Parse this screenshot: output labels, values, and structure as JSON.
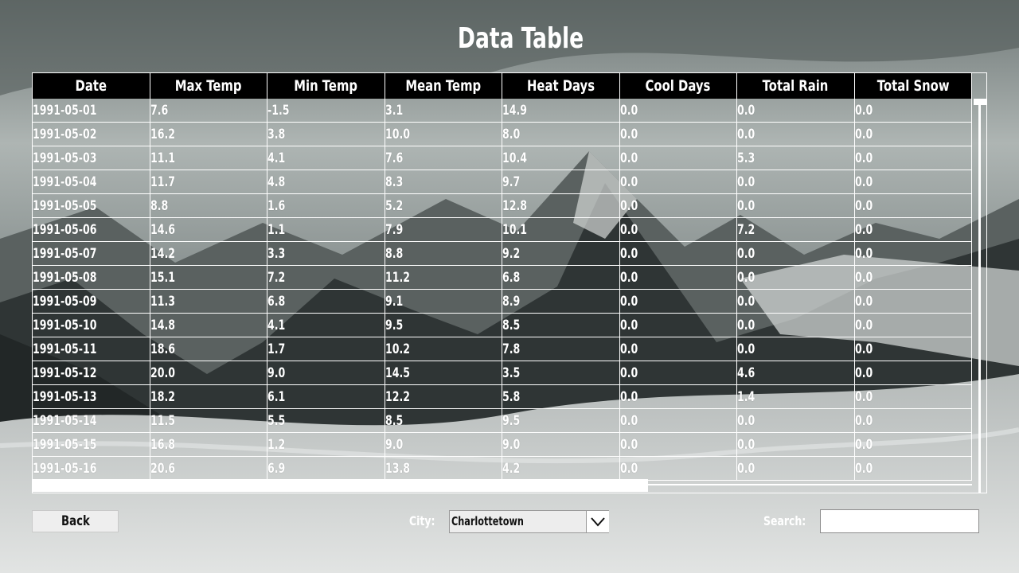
{
  "page": {
    "title": "Data Table"
  },
  "table": {
    "columns": [
      "Date",
      "Max Temp",
      "Min Temp",
      "Mean Temp",
      "Heat Days",
      "Cool Days",
      "Total Rain",
      "Total Snow"
    ],
    "rows": [
      [
        "1991-05-01",
        "7.6",
        "-1.5",
        "3.1",
        "14.9",
        "0.0",
        "0.0",
        "0.0"
      ],
      [
        "1991-05-02",
        "16.2",
        "3.8",
        "10.0",
        "8.0",
        "0.0",
        "0.0",
        "0.0"
      ],
      [
        "1991-05-03",
        "11.1",
        "4.1",
        "7.6",
        "10.4",
        "0.0",
        "5.3",
        "0.0"
      ],
      [
        "1991-05-04",
        "11.7",
        "4.8",
        "8.3",
        "9.7",
        "0.0",
        "0.0",
        "0.0"
      ],
      [
        "1991-05-05",
        "8.8",
        "1.6",
        "5.2",
        "12.8",
        "0.0",
        "0.0",
        "0.0"
      ],
      [
        "1991-05-06",
        "14.6",
        "1.1",
        "7.9",
        "10.1",
        "0.0",
        "7.2",
        "0.0"
      ],
      [
        "1991-05-07",
        "14.2",
        "3.3",
        "8.8",
        "9.2",
        "0.0",
        "0.0",
        "0.0"
      ],
      [
        "1991-05-08",
        "15.1",
        "7.2",
        "11.2",
        "6.8",
        "0.0",
        "0.0",
        "0.0"
      ],
      [
        "1991-05-09",
        "11.3",
        "6.8",
        "9.1",
        "8.9",
        "0.0",
        "0.0",
        "0.0"
      ],
      [
        "1991-05-10",
        "14.8",
        "4.1",
        "9.5",
        "8.5",
        "0.0",
        "0.0",
        "0.0"
      ],
      [
        "1991-05-11",
        "18.6",
        "1.7",
        "10.2",
        "7.8",
        "0.0",
        "0.0",
        "0.0"
      ],
      [
        "1991-05-12",
        "20.0",
        "9.0",
        "14.5",
        "3.5",
        "0.0",
        "4.6",
        "0.0"
      ],
      [
        "1991-05-13",
        "18.2",
        "6.1",
        "12.2",
        "5.8",
        "0.0",
        "1.4",
        "0.0"
      ],
      [
        "1991-05-14",
        "11.5",
        "5.5",
        "8.5",
        "9.5",
        "0.0",
        "0.0",
        "0.0"
      ],
      [
        "1991-05-15",
        "16.8",
        "1.2",
        "9.0",
        "9.0",
        "0.0",
        "0.0",
        "0.0"
      ],
      [
        "1991-05-16",
        "20.6",
        "6.9",
        "13.8",
        "4.2",
        "0.0",
        "0.0",
        "0.0"
      ]
    ]
  },
  "controls": {
    "back_label": "Back",
    "city_label": "City:",
    "city_value": "Charlottetown",
    "search_label": "Search:",
    "search_value": ""
  },
  "icons": {
    "dropdown": "chevron-down-icon"
  },
  "colors": {
    "header_bg": "#000000",
    "text": "#ffffff",
    "grid": "#ffffff",
    "button_bg": "#eeeeee"
  }
}
